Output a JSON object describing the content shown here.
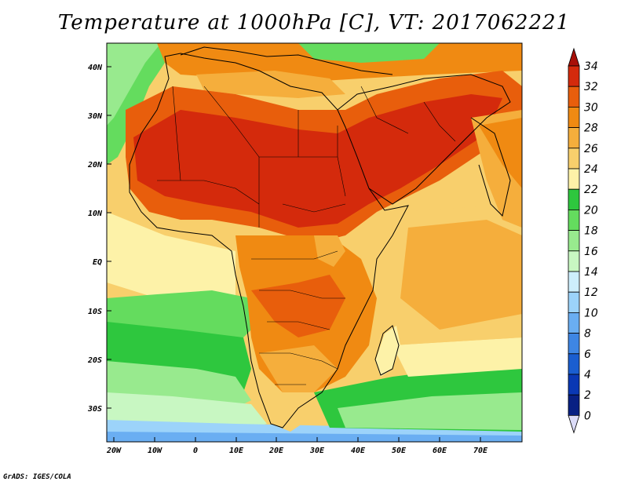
{
  "title": "Temperature at 1000hPa [C], VT: 2017062221",
  "lat_labels": [
    "40N",
    "30N",
    "20N",
    "10N",
    "EQ",
    "10S",
    "20S",
    "30S"
  ],
  "lon_labels": [
    "20W",
    "10W",
    "0",
    "10E",
    "20E",
    "30E",
    "40E",
    "50E",
    "60E",
    "70E"
  ],
  "colorbar": {
    "labels": [
      "34",
      "32",
      "30",
      "28",
      "26",
      "24",
      "22",
      "20",
      "18",
      "16",
      "14",
      "12",
      "10",
      "8",
      "6",
      "4",
      "2",
      "0"
    ],
    "colors": [
      "#d42a0c",
      "#e85e0c",
      "#f08a12",
      "#f5ae3c",
      "#f8cf6c",
      "#fdf2a8",
      "#2ec73e",
      "#64dc5e",
      "#98ea8e",
      "#c8f7c2",
      "#cdeefc",
      "#9cd3fa",
      "#6aaef2",
      "#3e86e4",
      "#1a5ed0",
      "#0a38b4",
      "#082083",
      "#081460"
    ],
    "top_arrow_color": "#a81008",
    "bottom_arrow_color": "#dcdcf8"
  },
  "footer": "GrADS: IGES/COLA"
}
